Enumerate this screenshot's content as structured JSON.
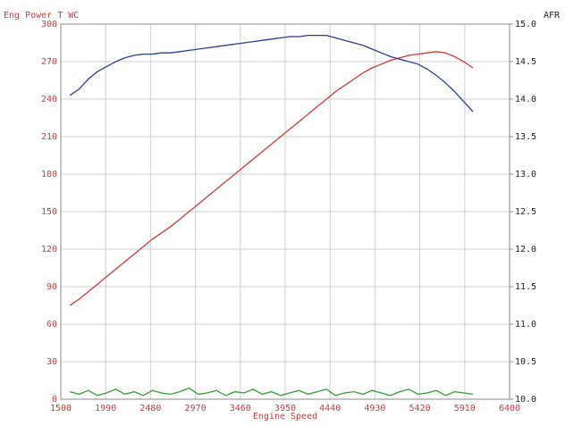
{
  "chart_data": {
    "type": "line",
    "title": "Eng Power T WC",
    "y2_title": "AFR",
    "x_label": "Engine Speed",
    "x": [
      1600,
      1700,
      1800,
      1900,
      2000,
      2100,
      2200,
      2300,
      2400,
      2500,
      2600,
      2700,
      2800,
      2900,
      3000,
      3100,
      3200,
      3300,
      3400,
      3500,
      3600,
      3700,
      3800,
      3900,
      4000,
      4100,
      4200,
      4300,
      4400,
      4500,
      4600,
      4700,
      4800,
      4900,
      5000,
      5100,
      5200,
      5300,
      5400,
      5500,
      5600,
      5700,
      5800,
      5900,
      6000
    ],
    "series": [
      {
        "color": "#cc3b3b",
        "values": [
          75,
          80,
          86,
          92,
          98,
          104,
          110,
          116,
          122,
          128,
          133,
          138,
          144,
          150,
          156,
          162,
          168,
          174,
          180,
          186,
          192,
          198,
          204,
          210,
          216,
          222,
          228,
          234,
          240,
          246,
          251,
          256,
          261,
          265,
          268,
          271,
          273,
          275,
          276,
          277,
          278,
          277,
          274,
          270,
          265
        ]
      },
      {
        "color": "#2b3f8c",
        "values": [
          243,
          248,
          256,
          262,
          266,
          270,
          273,
          275,
          276,
          276,
          277,
          277,
          278,
          279,
          280,
          281,
          282,
          283,
          284,
          285,
          286,
          287,
          288,
          289,
          290,
          290,
          291,
          291,
          291,
          289,
          287,
          285,
          283,
          280,
          277,
          274,
          272,
          270,
          268,
          264,
          259,
          253,
          246,
          238,
          230
        ]
      },
      {
        "color": "#3a9a3a",
        "values": [
          6,
          4,
          7,
          3,
          5,
          8,
          4,
          6,
          3,
          7,
          5,
          4,
          6,
          9,
          4,
          5,
          7,
          3,
          6,
          5,
          8,
          4,
          6,
          3,
          5,
          7,
          4,
          6,
          8,
          3,
          5,
          6,
          4,
          7,
          5,
          3,
          6,
          8,
          4,
          5,
          7,
          3,
          6,
          5,
          4
        ]
      }
    ],
    "xlim": [
      1500,
      6400
    ],
    "xticks": [
      1500,
      1990,
      2480,
      2970,
      3460,
      3950,
      4440,
      4930,
      5420,
      5910,
      6400
    ],
    "ylim": [
      0,
      300
    ],
    "yticks": [
      0,
      30,
      60,
      90,
      120,
      150,
      180,
      210,
      240,
      270,
      300
    ],
    "y2lim": [
      10,
      15
    ],
    "y2ticks": [
      {
        "value": 10,
        "label": "10.0"
      },
      10.5,
      {
        "value": 11,
        "label": "11.0"
      },
      11.5,
      {
        "value": 12,
        "label": "12.0"
      },
      12.5,
      {
        "value": 13,
        "label": "13.0"
      },
      13.5,
      {
        "value": 14,
        "label": "14.0"
      },
      14.5,
      {
        "value": 15,
        "label": "15.0"
      }
    ],
    "grid": true
  }
}
